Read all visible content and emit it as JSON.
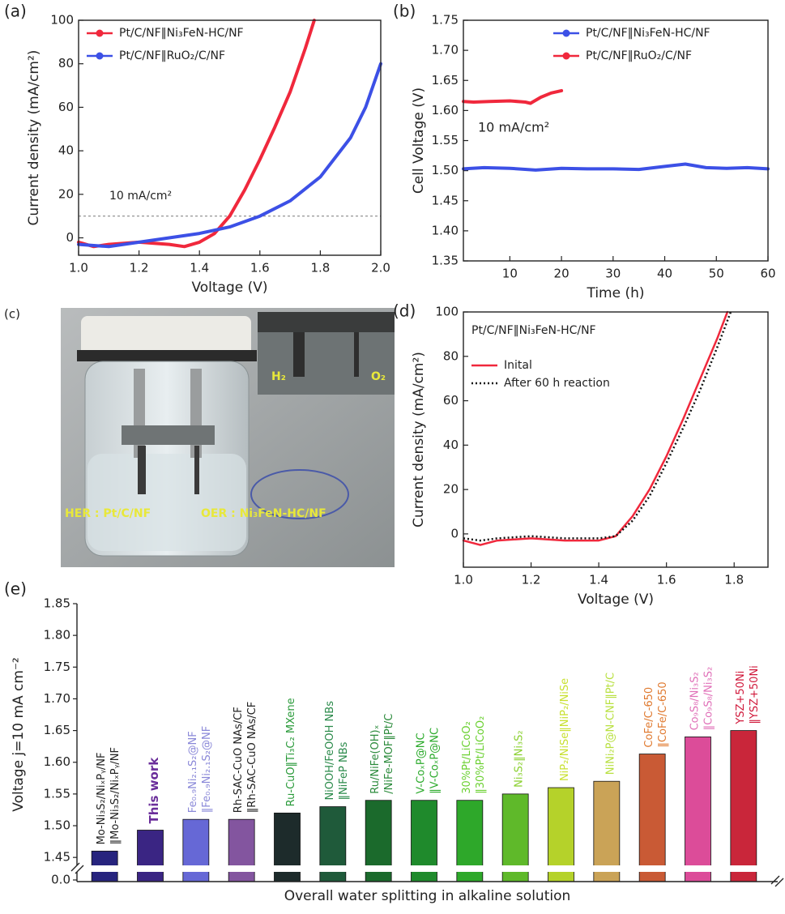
{
  "chart_data": [
    {
      "type": "line",
      "panel": "(a)",
      "x_label": "Voltage (V)",
      "y_label": "Current density (mA/cm²)",
      "xlim": [
        1.0,
        2.0
      ],
      "ylim": [
        -8,
        100
      ],
      "xticks": [
        {
          "value": 1,
          "label": "1.0"
        },
        1.2,
        1.4,
        1.6,
        1.8,
        {
          "value": 2,
          "label": "2.0"
        }
      ],
      "yticks": [
        0,
        20,
        40,
        60,
        80,
        100
      ],
      "ref_line": 10,
      "annotations": [
        "10 mA/cm²"
      ],
      "legend": "upper left",
      "series": [
        {
          "name": "Pt/C/NF‖Ni₃FeN-HC/NF",
          "color": "#f0283c",
          "marker": "circle",
          "x": [
            1.0,
            1.05,
            1.1,
            1.2,
            1.3,
            1.35,
            1.4,
            1.45,
            1.5,
            1.55,
            1.6,
            1.65,
            1.7,
            1.75,
            1.78
          ],
          "values": [
            -2,
            -4,
            -3,
            -2,
            -3,
            -4,
            -2,
            2,
            10,
            22,
            36,
            51,
            67,
            87,
            100
          ]
        },
        {
          "name": "Pt/C/NF‖RuO₂/C/NF",
          "color": "#3c50e6",
          "marker": "circle",
          "x": [
            1.0,
            1.1,
            1.2,
            1.3,
            1.4,
            1.5,
            1.6,
            1.7,
            1.8,
            1.9,
            1.95,
            2.0
          ],
          "values": [
            -3,
            -4,
            -2,
            0,
            2,
            5,
            10,
            17,
            28,
            46,
            60,
            80
          ]
        }
      ]
    },
    {
      "type": "line",
      "panel": "(b)",
      "x_label": "Time (h)",
      "y_label": "Cell Voltage (V)",
      "xlim": [
        1,
        60
      ],
      "ylim": [
        1.35,
        1.75
      ],
      "xticks": [
        10,
        20,
        30,
        40,
        50,
        60
      ],
      "yticks": [
        1.35,
        {
          "value": 1.4,
          "label": "1.40"
        },
        1.45,
        {
          "value": 1.5,
          "label": "1.50"
        },
        1.55,
        {
          "value": 1.6,
          "label": "1.60"
        },
        1.65,
        {
          "value": 1.7,
          "label": "1.70"
        },
        1.75
      ],
      "annotations": [
        "10 mA/cm²"
      ],
      "legend": "upper right",
      "series": [
        {
          "name": "Pt/C/NF‖Ni₃FeN-HC/NF",
          "color": "#3c50e6",
          "marker": "circle",
          "x": [
            1,
            5,
            10,
            15,
            20,
            25,
            30,
            35,
            40,
            44,
            48,
            52,
            56,
            60
          ],
          "values": [
            1.503,
            1.505,
            1.504,
            1.501,
            1.504,
            1.503,
            1.503,
            1.502,
            1.507,
            1.511,
            1.505,
            1.504,
            1.505,
            1.503
          ]
        },
        {
          "name": "Pt/C/NF‖RuO₂/C/NF",
          "color": "#f0283c",
          "marker": "circle",
          "x": [
            1,
            3,
            6,
            10,
            13,
            14,
            16,
            18,
            20
          ],
          "values": [
            1.615,
            1.614,
            1.615,
            1.616,
            1.614,
            1.612,
            1.622,
            1.629,
            1.633
          ]
        }
      ]
    },
    {
      "type": "line",
      "panel": "(d)",
      "x_label": "Voltage (V)",
      "y_label": "Current density (mA/cm²)",
      "xlim": [
        1.0,
        1.9
      ],
      "ylim": [
        -15,
        100
      ],
      "xticks": [
        {
          "value": 1,
          "label": "1.0"
        },
        1.2,
        1.4,
        1.6,
        1.8
      ],
      "yticks": [
        0,
        20,
        40,
        60,
        80,
        100
      ],
      "annotations": [
        "Pt/C/NF‖Ni₃FeN-HC/NF"
      ],
      "legend": "upper left",
      "series": [
        {
          "name": "Inital",
          "color": "#f0283c",
          "dash": "solid",
          "x": [
            1.0,
            1.05,
            1.1,
            1.2,
            1.3,
            1.4,
            1.45,
            1.5,
            1.55,
            1.6,
            1.65,
            1.7,
            1.75,
            1.78
          ],
          "values": [
            -3,
            -5,
            -3,
            -2,
            -3,
            -3,
            -1,
            8,
            20,
            35,
            52,
            70,
            88,
            100
          ]
        },
        {
          "name": "After 60 h reaction",
          "color": "#111111",
          "dash": "dotted",
          "x": [
            1.0,
            1.05,
            1.1,
            1.2,
            1.3,
            1.4,
            1.45,
            1.5,
            1.55,
            1.6,
            1.65,
            1.7,
            1.75,
            1.79
          ],
          "values": [
            -2,
            -3,
            -2,
            -1,
            -2,
            -2,
            -1,
            6,
            17,
            32,
            48,
            65,
            84,
            100
          ]
        }
      ]
    },
    {
      "type": "bar",
      "panel": "(e)",
      "x_label": "Overall  water splitting in alkaline solution",
      "y_label": "Voltage j=10 mA cm⁻²",
      "ylim": [
        0,
        1.85
      ],
      "ybreak": [
        0.02,
        1.44
      ],
      "yticks": [
        {
          "value": 0,
          "label": "0.0"
        },
        1.45,
        {
          "value": 1.5,
          "label": "1.50"
        },
        1.55,
        {
          "value": 1.6,
          "label": "1.60"
        },
        1.65,
        {
          "value": 1.7,
          "label": "1.70"
        },
        1.75,
        {
          "value": 1.8,
          "label": "1.80"
        },
        1.85
      ],
      "categories": [
        [
          "Mo-Ni₃S₂/NiₓPᵧ/NF",
          "‖Mo-Ni₃S₂/NiₓPᵧ/NF"
        ],
        [
          "This work"
        ],
        [
          "Fe₀.₉Ni₂.₁S₂@NF",
          "‖Fe₀.₉Ni₂.₁S₂@NF"
        ],
        [
          "Rh-SAC-CuO NAs/CF",
          "‖Rh-SAC-CuO NAs/CF"
        ],
        [
          "Ru-CuO‖Ti₃C₂ MXene"
        ],
        [
          "NiOOH/FeOOH NBs",
          "‖NiFeP NBs"
        ],
        [
          "Ru/NiFe(OH)ₓ",
          "/NiFe-MOF‖Pt/C"
        ],
        [
          "V-CoₓP@NC",
          "‖V-CoₓP@NC"
        ],
        [
          "30%Pt/LiCoO₂",
          "‖30%Pt/LiCoO₂"
        ],
        [
          "Ni₃S₂‖Ni₃S₂"
        ],
        [
          "NiP₂/NiSe‖NiP₂/NiSe"
        ],
        [
          "NiNi₂P@N-CNF‖Pt/C"
        ],
        [
          "CoFe/C-650",
          "‖CoFe/C-650"
        ],
        [
          "Co₉S₈/Ni₃S₂",
          "‖Co₉S₈/Ni₃S₂"
        ],
        [
          "YSZ+50Ni",
          "‖YSZ+50Ni"
        ]
      ],
      "values": [
        1.46,
        1.493,
        1.51,
        1.51,
        1.52,
        1.53,
        1.54,
        1.54,
        1.54,
        1.55,
        1.56,
        1.57,
        1.613,
        1.64,
        1.65
      ],
      "colors": [
        "#27247e",
        "#3a2583",
        "#6668d6",
        "#83559f",
        "#1d2b2b",
        "#1f5a3a",
        "#1b6a2c",
        "#1f8a2c",
        "#2ea82a",
        "#5fb92a",
        "#b5d22a",
        "#caa357",
        "#c95a35",
        "#dc4c99",
        "#c9263a"
      ],
      "label_colors": [
        "#222222",
        "#6a2d9a",
        "#8a88d8",
        "#222222",
        "#2a9a3a",
        "#2a8a4a",
        "#2a8a3a",
        "#2aaa2a",
        "#6ad030",
        "#8ad030",
        "#c8e030",
        "#b8e040",
        "#e07a30",
        "#e070b8",
        "#d0183a"
      ]
    }
  ],
  "photo": {
    "panel": "(c)",
    "labels": [
      "H₂",
      "O₂",
      "HER : Pt/C/NF",
      "OER : Ni₃FeN-HC/NF"
    ]
  }
}
